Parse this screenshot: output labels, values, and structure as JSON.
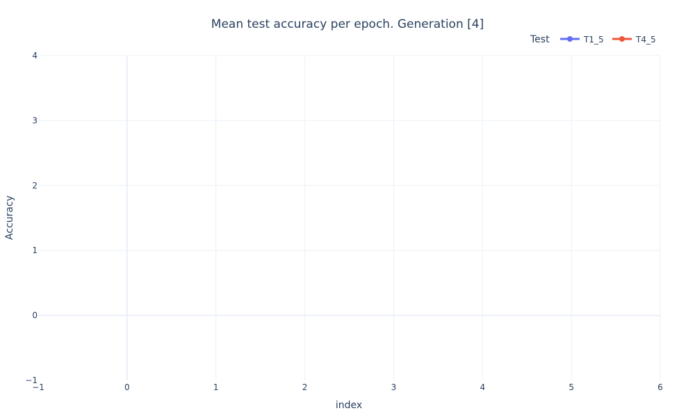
{
  "chart_data": {
    "type": "line",
    "title": "Mean test accuracy per epoch. Generation [4]",
    "xlabel": "index",
    "ylabel": "Accuracy",
    "xlim": [
      -1,
      6
    ],
    "ylim": [
      -1,
      4
    ],
    "x_ticks": [
      -1,
      0,
      1,
      2,
      3,
      4,
      5,
      6
    ],
    "y_ticks": [
      -1,
      0,
      1,
      2,
      3,
      4
    ],
    "x_tick_labels": [
      "−1",
      "0",
      "1",
      "2",
      "3",
      "4",
      "5",
      "6"
    ],
    "y_tick_labels": [
      "−1",
      "0",
      "1",
      "2",
      "3",
      "4"
    ],
    "grid": true,
    "legend": {
      "title": "Test",
      "placement": "top-right",
      "orientation": "horizontal"
    },
    "series": [
      {
        "name": "T1_5",
        "color": "#636efa",
        "x": [],
        "y": []
      },
      {
        "name": "T4_5",
        "color": "#ef553b",
        "x": [],
        "y": []
      }
    ]
  }
}
